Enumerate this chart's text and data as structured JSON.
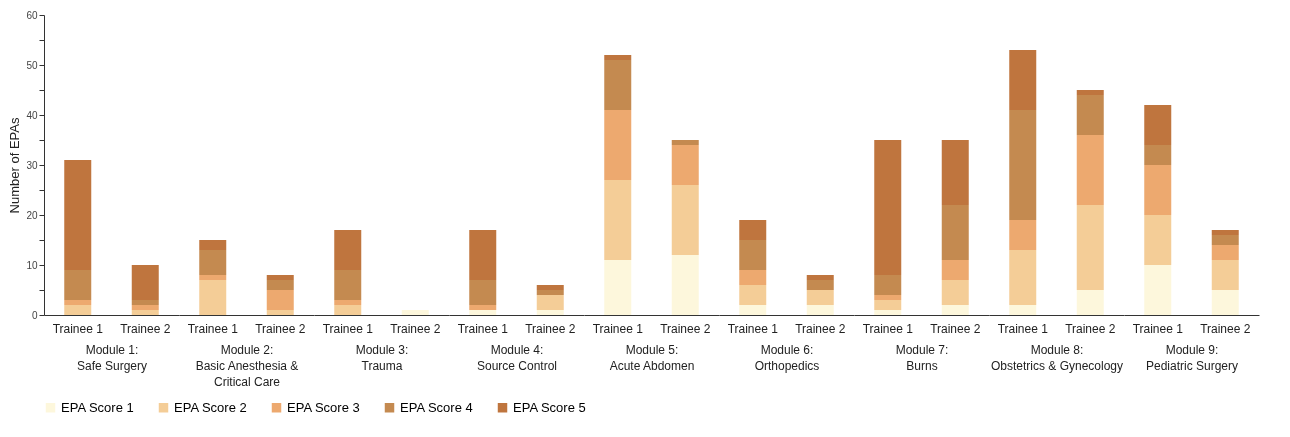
{
  "chart_data": [
    {
      "type": "bar",
      "stacked": true,
      "categories": [
        "Trainee 1",
        "Trainee 2"
      ],
      "xlabel": "Module 1: Safe Surgery",
      "ylabel": "Number of EPAs",
      "ylim": [
        0,
        60
      ],
      "yticks": [
        0,
        {
          "value": 5,
          "label": null
        },
        10,
        {
          "value": 15,
          "label": null
        },
        20,
        {
          "value": 25,
          "label": null
        },
        30,
        {
          "value": 35,
          "label": null
        },
        40,
        {
          "value": 45,
          "label": null
        },
        50,
        {
          "value": 55,
          "label": null
        },
        60
      ],
      "legend": "bottom",
      "series": [
        {
          "name": "EPA Score 1",
          "color": "#fdf7dc",
          "values": [
            0,
            0
          ]
        },
        {
          "name": "EPA Score 2",
          "color": "#f4cd97",
          "values": [
            2,
            1
          ]
        },
        {
          "name": "EPA Score 3",
          "color": "#eda96f",
          "values": [
            1,
            1
          ]
        },
        {
          "name": "EPA Score 4",
          "color": "#c48a50",
          "values": [
            6,
            1
          ]
        },
        {
          "name": "EPA Score 5",
          "color": "#bf753e",
          "values": [
            22,
            7
          ]
        }
      ]
    },
    {
      "type": "bar",
      "stacked": true,
      "categories": [
        "Trainee 1",
        "Trainee 2"
      ],
      "xlabel": "Module 2: Basic Anesthesia & Critical Care",
      "ylim": [
        0,
        60
      ],
      "tick_labels": "x",
      "series": [
        {
          "color": "#fdf7dc",
          "values": [
            0,
            0
          ]
        },
        {
          "color": "#f4cd97",
          "values": [
            7,
            1
          ]
        },
        {
          "color": "#eda96f",
          "values": [
            1,
            4
          ]
        },
        {
          "color": "#c48a50",
          "values": [
            5,
            2
          ]
        },
        {
          "color": "#bf753e",
          "values": [
            2,
            1
          ]
        }
      ]
    },
    {
      "type": "bar",
      "stacked": true,
      "categories": [
        "Trainee 1",
        "Trainee 2"
      ],
      "xlabel": "Module 3: Trauma",
      "ylim": [
        0,
        60
      ],
      "tick_labels": "x",
      "series": [
        {
          "color": "#fdf7dc",
          "values": [
            0,
            1
          ]
        },
        {
          "color": "#f4cd97",
          "values": [
            2,
            0
          ]
        },
        {
          "color": "#eda96f",
          "values": [
            1,
            0
          ]
        },
        {
          "color": "#c48a50",
          "values": [
            6,
            0
          ]
        },
        {
          "color": "#bf753e",
          "values": [
            8,
            0
          ]
        }
      ]
    },
    {
      "type": "bar",
      "stacked": true,
      "categories": [
        "Trainee 1",
        "Trainee 2"
      ],
      "xlabel": "Module 4: Source Control",
      "ylim": [
        0,
        60
      ],
      "tick_labels": "x",
      "series": [
        {
          "color": "#fdf7dc",
          "values": [
            1,
            1
          ]
        },
        {
          "color": "#f4cd97",
          "values": [
            0,
            3
          ]
        },
        {
          "color": "#eda96f",
          "values": [
            1,
            0
          ]
        },
        {
          "color": "#c48a50",
          "values": [
            5,
            1
          ]
        },
        {
          "color": "#bf753e",
          "values": [
            10,
            1
          ]
        }
      ]
    },
    {
      "type": "bar",
      "stacked": true,
      "categories": [
        "Trainee 1",
        "Trainee 2"
      ],
      "xlabel": "Module 5: Acute Abdomen",
      "ylim": [
        0,
        60
      ],
      "tick_labels": "x",
      "series": [
        {
          "color": "#fdf7dc",
          "values": [
            11,
            12
          ]
        },
        {
          "color": "#f4cd97",
          "values": [
            16,
            14
          ]
        },
        {
          "color": "#eda96f",
          "values": [
            14,
            8
          ]
        },
        {
          "color": "#c48a50",
          "values": [
            10,
            1
          ]
        },
        {
          "color": "#bf753e",
          "values": [
            1,
            0
          ]
        }
      ]
    },
    {
      "type": "bar",
      "stacked": true,
      "categories": [
        "Trainee 1",
        "Trainee 2"
      ],
      "xlabel": "Module 6: Orthopedics",
      "ylim": [
        0,
        60
      ],
      "tick_labels": "x",
      "series": [
        {
          "color": "#fdf7dc",
          "values": [
            2,
            2
          ]
        },
        {
          "color": "#f4cd97",
          "values": [
            4,
            3
          ]
        },
        {
          "color": "#eda96f",
          "values": [
            3,
            0
          ]
        },
        {
          "color": "#c48a50",
          "values": [
            6,
            2
          ]
        },
        {
          "color": "#bf753e",
          "values": [
            4,
            1
          ]
        }
      ]
    },
    {
      "type": "bar",
      "stacked": true,
      "categories": [
        "Trainee 1",
        "Trainee 2"
      ],
      "xlabel": "Module 7: Burns",
      "ylim": [
        0,
        60
      ],
      "tick_labels": "x",
      "series": [
        {
          "color": "#fdf7dc",
          "values": [
            1,
            2
          ]
        },
        {
          "color": "#f4cd97",
          "values": [
            2,
            5
          ]
        },
        {
          "color": "#eda96f",
          "values": [
            1,
            4
          ]
        },
        {
          "color": "#c48a50",
          "values": [
            4,
            11
          ]
        },
        {
          "color": "#bf753e",
          "values": [
            27,
            13
          ]
        }
      ]
    },
    {
      "type": "bar",
      "stacked": true,
      "categories": [
        "Trainee 1",
        "Trainee 2"
      ],
      "xlabel": "Module 8: Obstetrics & Gynecology",
      "ylim": [
        0,
        60
      ],
      "tick_labels": "x",
      "series": [
        {
          "color": "#fdf7dc",
          "values": [
            2,
            5
          ]
        },
        {
          "color": "#f4cd97",
          "values": [
            11,
            17
          ]
        },
        {
          "color": "#eda96f",
          "values": [
            6,
            14
          ]
        },
        {
          "color": "#c48a50",
          "values": [
            22,
            8
          ]
        },
        {
          "color": "#bf753e",
          "values": [
            12,
            1
          ]
        }
      ]
    },
    {
      "type": "bar",
      "stacked": true,
      "categories": [
        "Trainee 1",
        "Trainee 2"
      ],
      "xlabel": "Module 9: Pediatric Surgery",
      "ylim": [
        0,
        60
      ],
      "tick_labels": "x",
      "series": [
        {
          "color": "#fdf7dc",
          "values": [
            10,
            5
          ]
        },
        {
          "color": "#f4cd97",
          "values": [
            10,
            6
          ]
        },
        {
          "color": "#eda96f",
          "values": [
            10,
            3
          ]
        },
        {
          "color": "#c48a50",
          "values": [
            4,
            2
          ]
        },
        {
          "color": "#bf753e",
          "values": [
            8,
            1
          ]
        }
      ]
    }
  ]
}
